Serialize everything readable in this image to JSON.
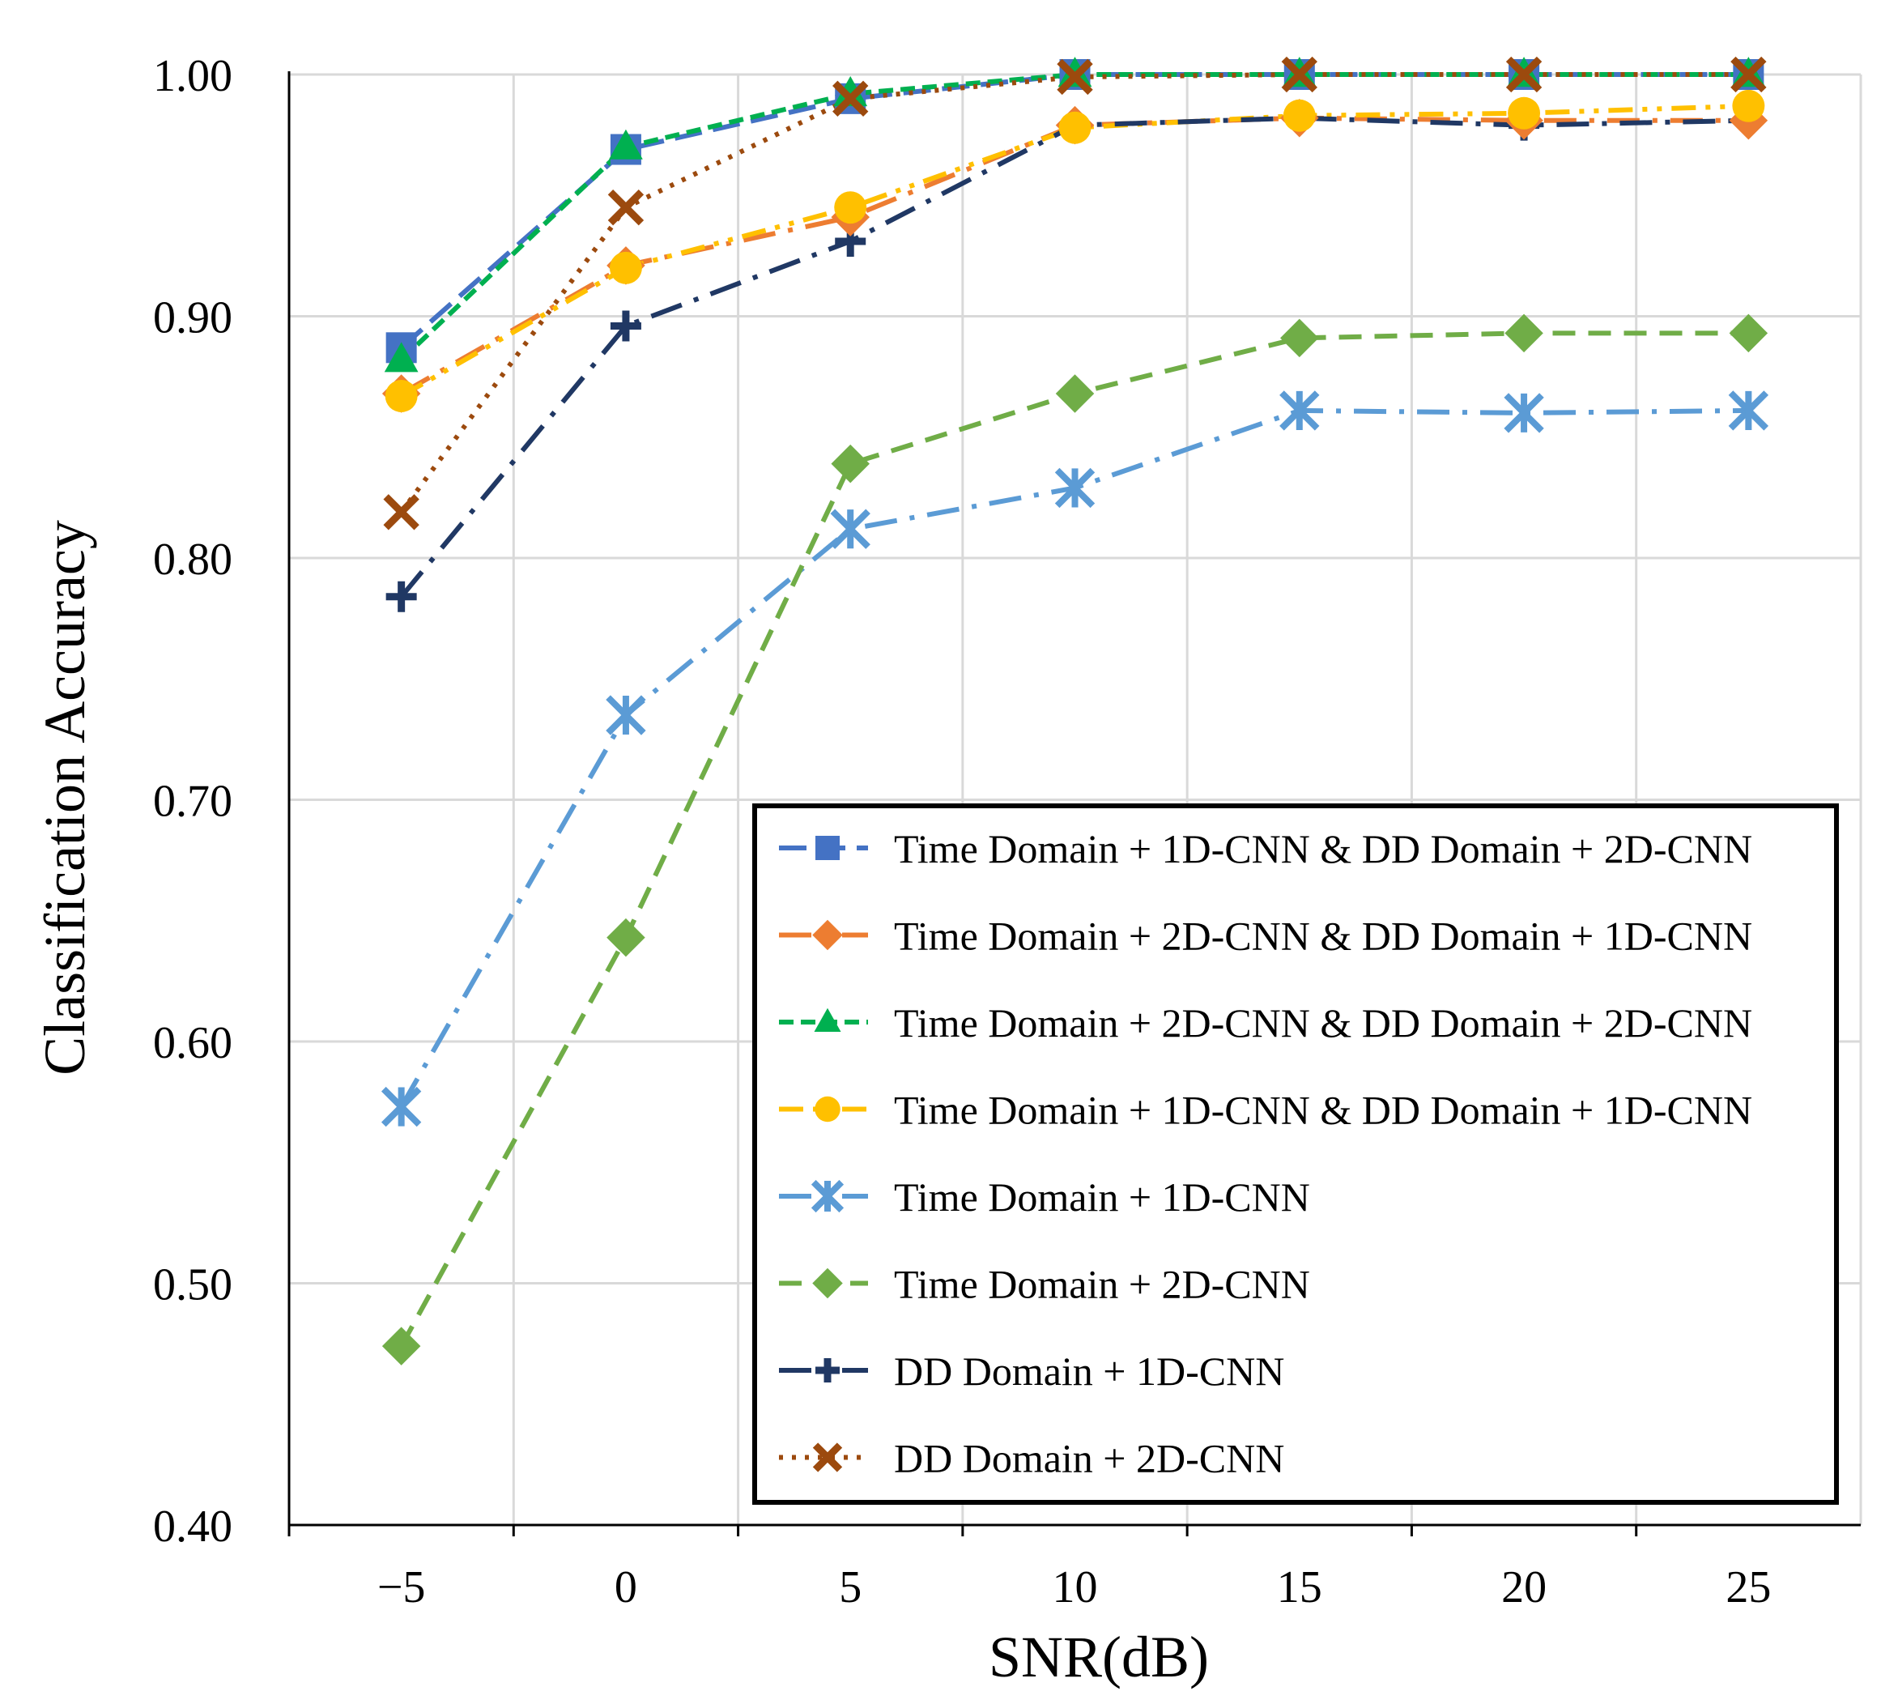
{
  "chart_data": {
    "type": "line",
    "title": "",
    "xlabel": "SNR(dB)",
    "ylabel": "Classification Accuracy",
    "xlim": [
      -7.5,
      27.5
    ],
    "ylim": [
      0.4,
      1.0
    ],
    "grid": true,
    "legend_position": "bottom-right",
    "x": [
      -5,
      0,
      5,
      10,
      15,
      20,
      25
    ],
    "x_tick_labels": [
      "−5",
      "0",
      "5",
      "10",
      "15",
      "20",
      "25"
    ],
    "y_ticks": [
      0.4,
      0.5,
      0.6,
      0.7,
      0.8,
      0.9,
      1.0
    ],
    "y_tick_labels": [
      "0.40",
      "0.50",
      "0.60",
      "0.70",
      "0.80",
      "0.90",
      "1.00"
    ],
    "series": [
      {
        "name": "Time Domain + 1D-CNN & DD Domain + 2D-CNN",
        "color": "#4472C4",
        "dash": "long-dash",
        "marker": "square",
        "values": [
          0.887,
          0.969,
          0.99,
          1.0,
          1.0,
          1.0,
          1.0
        ]
      },
      {
        "name": "Time Domain + 2D-CNN & DD Domain + 1D-CNN",
        "color": "#ED7D31",
        "dash": "long-dash-dot",
        "marker": "diamond",
        "values": [
          0.868,
          0.921,
          0.941,
          0.979,
          0.982,
          0.981,
          0.981
        ]
      },
      {
        "name": "Time Domain + 2D-CNN & DD Domain + 2D-CNN",
        "color": "#00B050",
        "dash": "short-dash",
        "marker": "triangle",
        "values": [
          0.882,
          0.97,
          0.992,
          1.0,
          1.0,
          1.0,
          1.0
        ]
      },
      {
        "name": "Time Domain + 1D-CNN & DD Domain + 1D-CNN",
        "color": "#FFC000",
        "dash": "dash-dot-dot",
        "marker": "circle",
        "values": [
          0.867,
          0.92,
          0.945,
          0.978,
          0.983,
          0.984,
          0.987
        ]
      },
      {
        "name": "Time Domain + 1D-CNN",
        "color": "#5B9BD5",
        "dash": "long-dash-dot",
        "marker": "asterisk",
        "values": [
          0.573,
          0.735,
          0.812,
          0.829,
          0.861,
          0.86,
          0.861
        ]
      },
      {
        "name": "Time Domain + 2D-CNN",
        "color": "#70AD47",
        "dash": "dash",
        "marker": "diamond",
        "values": [
          0.474,
          0.643,
          0.839,
          0.868,
          0.891,
          0.893,
          0.893
        ]
      },
      {
        "name": "DD Domain + 1D-CNN",
        "color": "#203864",
        "dash": "long-dash-dot",
        "marker": "plus",
        "values": [
          0.784,
          0.896,
          0.931,
          0.979,
          0.982,
          0.979,
          0.981
        ]
      },
      {
        "name": "DD Domain + 2D-CNN",
        "color": "#9C4A0E",
        "dash": "dot",
        "marker": "x",
        "values": [
          0.819,
          0.945,
          0.99,
          0.999,
          1.0,
          1.0,
          1.0
        ]
      }
    ]
  }
}
